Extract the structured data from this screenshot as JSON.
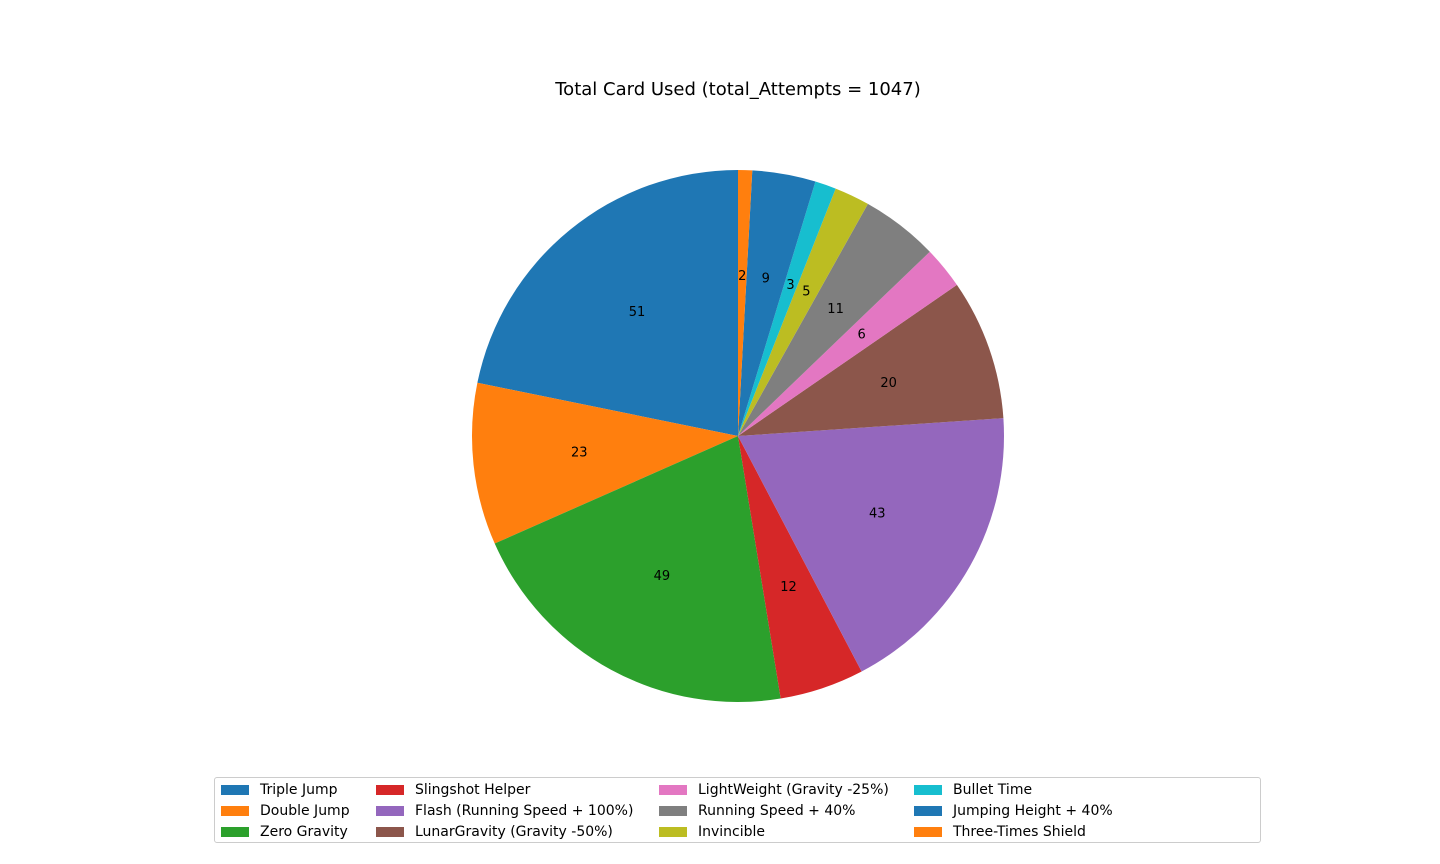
{
  "chart_data": {
    "type": "pie",
    "title": "Total Card Used (total_Attempts = 1047)",
    "slices": [
      {
        "label": "Triple Jump",
        "value": 51,
        "color": "#1f77b4"
      },
      {
        "label": "Double Jump",
        "value": 23,
        "color": "#ff7f0e"
      },
      {
        "label": "Zero Gravity",
        "value": 49,
        "color": "#2ca02c"
      },
      {
        "label": "Slingshot Helper",
        "value": 12,
        "color": "#d62728"
      },
      {
        "label": "Flash (Running Speed + 100%)",
        "value": 43,
        "color": "#9467bd"
      },
      {
        "label": "LunarGravity (Gravity -50%)",
        "value": 20,
        "color": "#8c564b"
      },
      {
        "label": "LightWeight (Gravity -25%)",
        "value": 6,
        "color": "#e377c2"
      },
      {
        "label": "Running Speed + 40%",
        "value": 11,
        "color": "#7f7f7f"
      },
      {
        "label": "Invincible",
        "value": 5,
        "color": "#bcbd22"
      },
      {
        "label": "Bullet Time",
        "value": 3,
        "color": "#17becf"
      },
      {
        "label": "Jumping Height + 40%",
        "value": 9,
        "color": "#1f77b4"
      },
      {
        "label": "Three-Times Shield",
        "value": 2,
        "color": "#ff7f0e"
      }
    ],
    "start_angle_deg": 90,
    "direction": "counterclockwise",
    "legend_position": "bottom-center",
    "legend_columns": 5
  }
}
